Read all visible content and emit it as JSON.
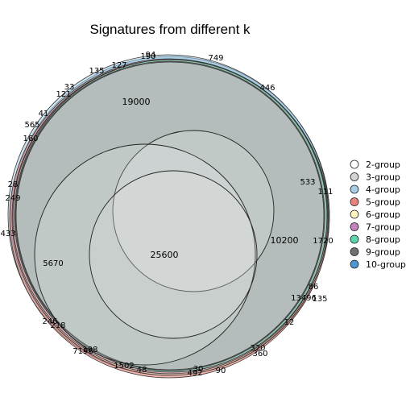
{
  "title": "Signatures from different k",
  "legend": [
    {
      "label": "2-group",
      "color": "#FFFFFF"
    },
    {
      "label": "3-group",
      "color": "#D3D3D3"
    },
    {
      "label": "4-group",
      "color": "#A7CEE2"
    },
    {
      "label": "5-group",
      "color": "#E8837C"
    },
    {
      "label": "6-group",
      "color": "#FFF6C4"
    },
    {
      "label": "7-group",
      "color": "#C583BE"
    },
    {
      "label": "8-group",
      "color": "#5BD6B1"
    },
    {
      "label": "9-group",
      "color": "#707070"
    },
    {
      "label": "10-group",
      "color": "#4D95D3"
    }
  ],
  "labels": [
    "749",
    "446",
    "190",
    "94",
    "127",
    "135",
    "33",
    "121",
    "41",
    "565",
    "160",
    "19000",
    "28",
    "249",
    "433",
    "533",
    "111",
    "1720",
    "10200",
    "25600",
    "5670",
    "135",
    "86",
    "13496",
    "12",
    "246",
    "218",
    "7196",
    "198",
    "1502",
    "48",
    "30",
    "492",
    "90",
    "360",
    "320"
  ]
}
